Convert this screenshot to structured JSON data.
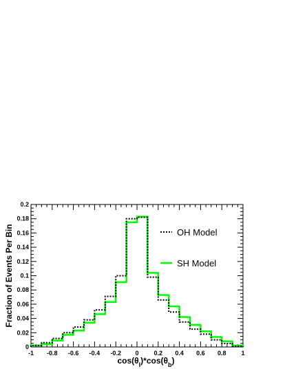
{
  "chart_data": {
    "type": "line",
    "title": "",
    "xlabel": "cos(θ_l)*cos(θ_b)",
    "ylabel": "Fraction of Events Per Bin",
    "xlim": [
      -1,
      1
    ],
    "ylim": [
      0,
      0.2
    ],
    "x_ticks": [
      "-1",
      "-0.8",
      "-0.6",
      "-0.4",
      "-0.2",
      "0",
      "0.2",
      "0.4",
      "0.6",
      "0.8",
      "1"
    ],
    "y_ticks": [
      "0",
      "0.02",
      "0.04",
      "0.06",
      "0.08",
      "0.1",
      "0.12",
      "0.14",
      "0.16",
      "0.18",
      "0.2"
    ],
    "bin_edges": [
      -1,
      -0.9,
      -0.8,
      -0.7,
      -0.6,
      -0.5,
      -0.4,
      -0.3,
      -0.2,
      -0.1,
      0,
      0.1,
      0.2,
      0.3,
      0.4,
      0.5,
      0.6,
      0.7,
      0.8,
      0.9,
      1
    ],
    "series": [
      {
        "name": "OH Model",
        "style": "dotted",
        "color": "#000000",
        "values": [
          0.002,
          0.006,
          0.012,
          0.02,
          0.028,
          0.038,
          0.052,
          0.071,
          0.1,
          0.18,
          0.182,
          0.098,
          0.066,
          0.049,
          0.035,
          0.025,
          0.018,
          0.01,
          0.005,
          0.001
        ]
      },
      {
        "name": "SH Model",
        "style": "solid",
        "color": "#00ff00",
        "values": [
          0.002,
          0.004,
          0.009,
          0.017,
          0.023,
          0.034,
          0.046,
          0.063,
          0.091,
          0.175,
          0.183,
          0.104,
          0.073,
          0.057,
          0.042,
          0.031,
          0.022,
          0.014,
          0.008,
          0.002
        ]
      }
    ],
    "legend": {
      "placement": "right"
    },
    "grid": false
  }
}
